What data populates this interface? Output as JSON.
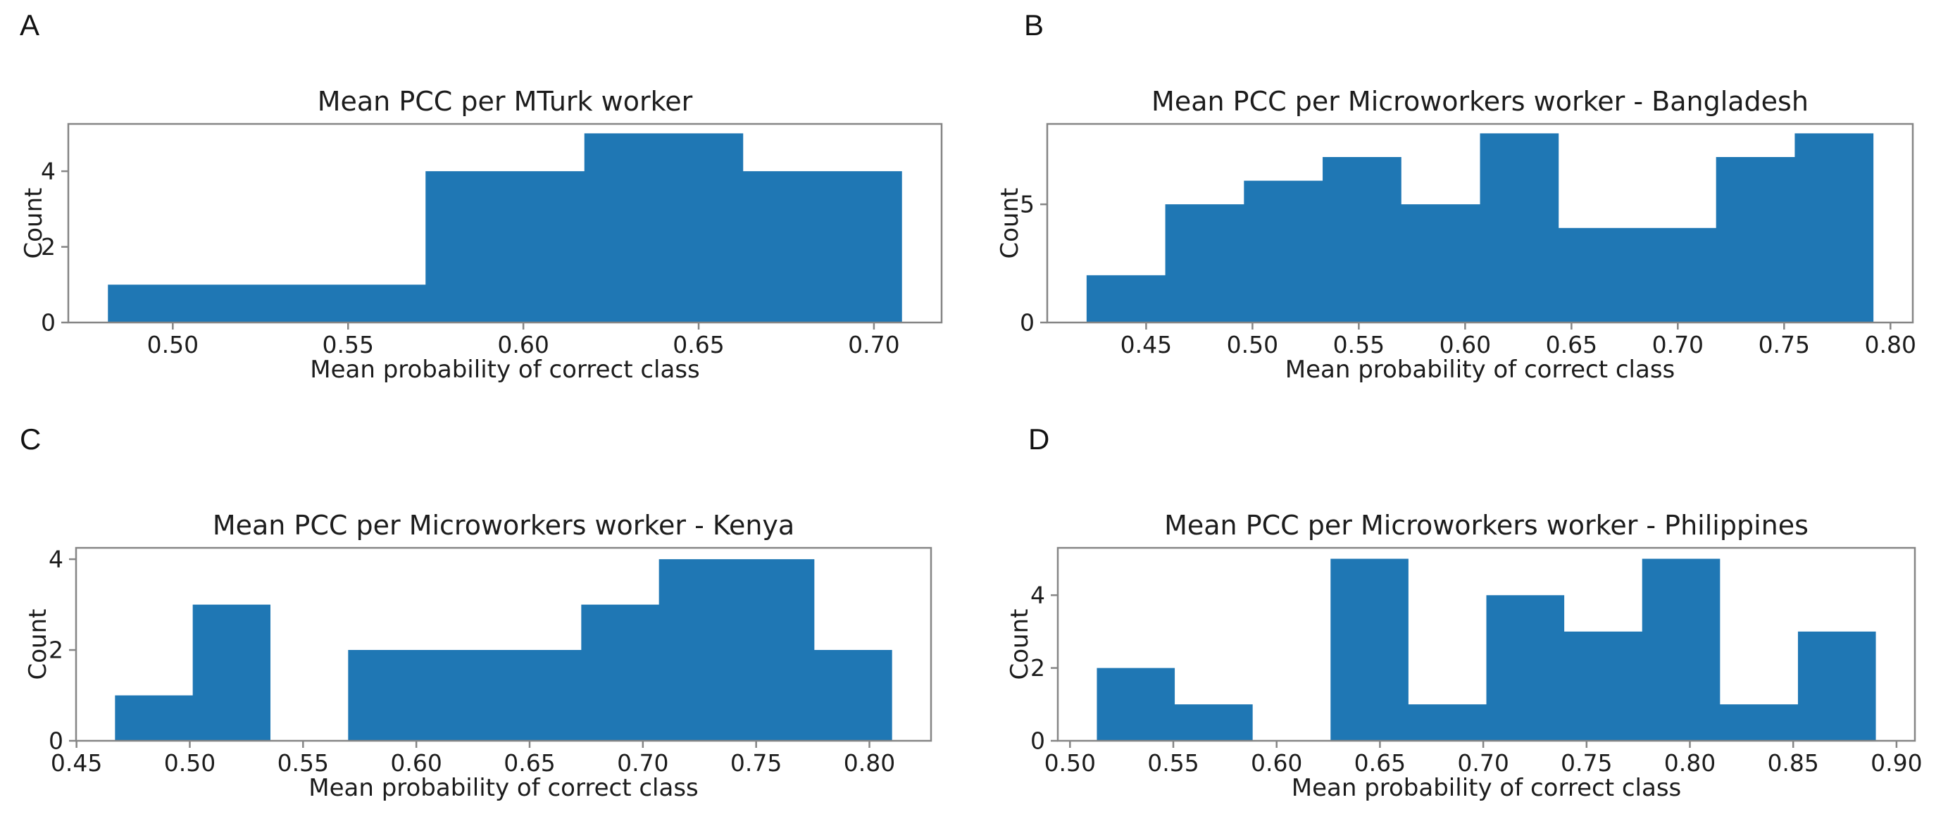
{
  "page": {
    "background": "#ffffff",
    "text_color": "#1c1c1c",
    "spine_color": "#858585",
    "bar_color": "#1f77b4"
  },
  "panels": [
    {
      "label": "A"
    },
    {
      "label": "B"
    },
    {
      "label": "C"
    },
    {
      "label": "D"
    }
  ],
  "chart_data": [
    {
      "type": "bar",
      "subtype": "histogram",
      "panel": "A",
      "title": "Mean PCC per MTurk worker",
      "xlabel": "Mean probability of correct class",
      "ylabel": "Count",
      "bin_edges": [
        0.4815,
        0.5268,
        0.5721,
        0.6174,
        0.6627,
        0.708
      ],
      "counts": [
        1,
        1,
        4,
        5,
        4
      ],
      "xticks": [
        0.5,
        0.55,
        0.6,
        0.65,
        0.7
      ],
      "xtick_labels": [
        "0.50",
        "0.55",
        "0.60",
        "0.65",
        "0.70"
      ],
      "yticks": [
        0,
        2,
        4
      ],
      "ytick_labels": [
        "0",
        "2",
        "4"
      ],
      "xlim": [
        0.4702,
        0.7193
      ],
      "ylim": [
        0,
        5.25
      ],
      "grid": false,
      "legend": null
    },
    {
      "type": "bar",
      "subtype": "histogram",
      "panel": "B",
      "title": "Mean PCC per Microworkers worker - Bangladesh",
      "xlabel": "Mean probability of correct class",
      "ylabel": "Count",
      "bin_edges": [
        0.422,
        0.459,
        0.496,
        0.533,
        0.57,
        0.607,
        0.644,
        0.681,
        0.718,
        0.755,
        0.792
      ],
      "counts": [
        2,
        5,
        6,
        7,
        5,
        8,
        4,
        4,
        7,
        8
      ],
      "xticks": [
        0.45,
        0.5,
        0.55,
        0.6,
        0.65,
        0.7,
        0.75,
        0.8
      ],
      "xtick_labels": [
        "0.45",
        "0.50",
        "0.55",
        "0.60",
        "0.65",
        "0.70",
        "0.75",
        "0.80"
      ],
      "yticks": [
        0,
        5
      ],
      "ytick_labels": [
        "0",
        "5"
      ],
      "xlim": [
        0.4035,
        0.8105
      ],
      "ylim": [
        0,
        8.4
      ],
      "grid": false,
      "legend": null
    },
    {
      "type": "bar",
      "subtype": "histogram",
      "panel": "C",
      "title": "Mean PCC per Microworkers worker - Kenya",
      "xlabel": "Mean probability of correct class",
      "ylabel": "Count",
      "bin_edges": [
        0.467,
        0.5013,
        0.5356,
        0.5699,
        0.6042,
        0.6385,
        0.6728,
        0.7071,
        0.7414,
        0.7757,
        0.81
      ],
      "counts": [
        1,
        3,
        0,
        2,
        2,
        2,
        3,
        4,
        4,
        2
      ],
      "xticks": [
        0.45,
        0.5,
        0.55,
        0.6,
        0.65,
        0.7,
        0.75,
        0.8
      ],
      "xtick_labels": [
        "0.45",
        "0.50",
        "0.55",
        "0.60",
        "0.65",
        "0.70",
        "0.75",
        "0.80"
      ],
      "yticks": [
        0,
        2,
        4
      ],
      "ytick_labels": [
        "0",
        "2",
        "4"
      ],
      "xlim": [
        0.4498,
        0.8272
      ],
      "ylim": [
        0,
        4.25
      ],
      "grid": false,
      "legend": null
    },
    {
      "type": "bar",
      "subtype": "histogram",
      "panel": "D",
      "title": "Mean PCC per Microworkers worker - Philippines",
      "xlabel": "Mean probability of correct class",
      "ylabel": "Count",
      "bin_edges": [
        0.513,
        0.5507,
        0.5884,
        0.6261,
        0.6638,
        0.7015,
        0.7392,
        0.7769,
        0.8146,
        0.8523,
        0.89
      ],
      "counts": [
        2,
        1,
        0,
        5,
        1,
        4,
        3,
        5,
        1,
        3
      ],
      "xticks": [
        0.5,
        0.55,
        0.6,
        0.65,
        0.7,
        0.75,
        0.8,
        0.85,
        0.9
      ],
      "xtick_labels": [
        "0.50",
        "0.55",
        "0.60",
        "0.65",
        "0.70",
        "0.75",
        "0.80",
        "0.85",
        "0.90"
      ],
      "yticks": [
        0,
        2,
        4
      ],
      "ytick_labels": [
        "0",
        "2",
        "4"
      ],
      "xlim": [
        0.4941,
        0.9089
      ],
      "ylim": [
        0,
        5.3
      ],
      "grid": false,
      "legend": null
    }
  ]
}
